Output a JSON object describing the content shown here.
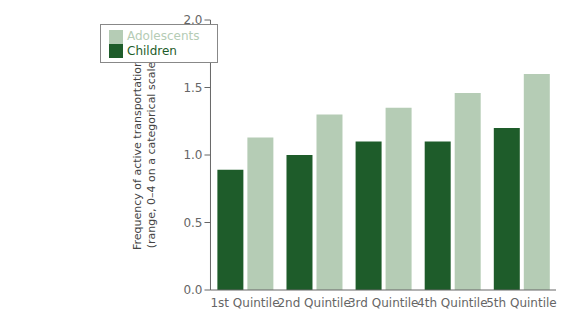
{
  "chart_data": {
    "type": "bar",
    "categories": [
      "1st Quintile",
      "2nd Quintile",
      "3rd Quintile",
      "4th Quintile",
      "5th Quintile"
    ],
    "series": [
      {
        "name": "Children",
        "color": "#1e5c2a",
        "values": [
          0.89,
          1.0,
          1.1,
          1.1,
          1.2
        ]
      },
      {
        "name": "Adolescents",
        "color": "#b5ccb5",
        "values": [
          1.13,
          1.3,
          1.35,
          1.46,
          1.6
        ]
      }
    ],
    "ylabel": "Frequency of active transportation\n(range, 0–4 on a categorical scale",
    "ylim": [
      0,
      2.0
    ],
    "yticks": [
      {
        "value": 0.0,
        "label": "0.0"
      },
      {
        "value": 0.5,
        "label": "0.5"
      },
      {
        "value": 1.0,
        "label": "1.0"
      },
      {
        "value": 1.5,
        "label": "1.5"
      },
      {
        "value": 2.0,
        "label": "2.0"
      }
    ],
    "legend": "upper left",
    "grid": false
  }
}
